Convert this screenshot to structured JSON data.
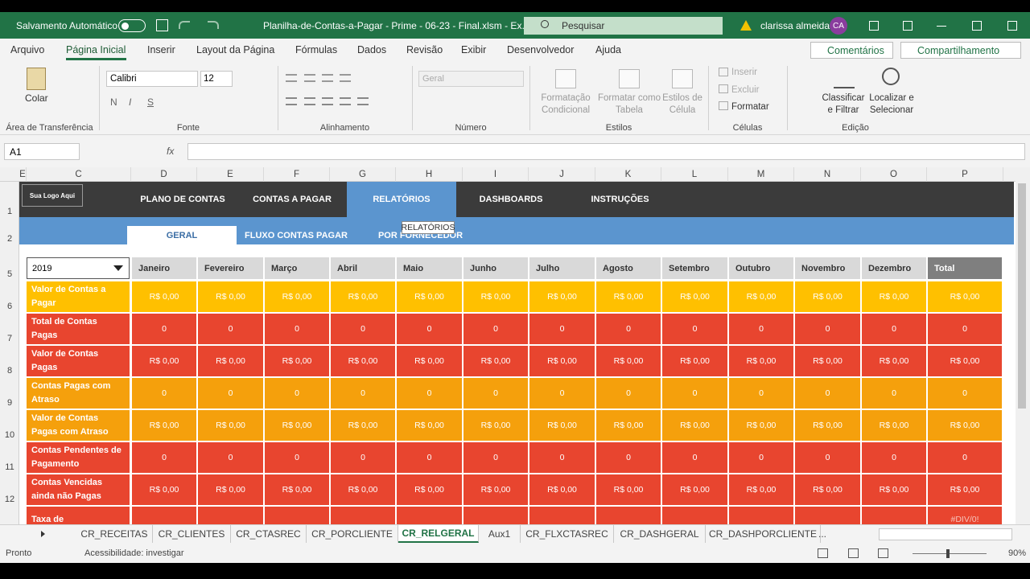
{
  "title_bar": {
    "autosave": "Salvamento Automático",
    "filename": "Planilha-de-Contas-a-Pagar - Prime - 06-23 - Final.xlsm - Ex...",
    "search": "Pesquisar",
    "user": "clarissa almeida",
    "initials": "CA"
  },
  "menu": {
    "tabs": [
      "Arquivo",
      "Página Inicial",
      "Inserir",
      "Layout da Página",
      "Fórmulas",
      "Dados",
      "Revisão",
      "Exibir",
      "Desenvolvedor",
      "Ajuda"
    ],
    "comments": "Comentários",
    "share": "Compartilhamento"
  },
  "ribbon": {
    "paste": "Colar",
    "font": "Calibri",
    "size": "12",
    "bold": "N",
    "italic": "I",
    "underline": "S",
    "number_format": "Geral",
    "conditional": [
      "Formatação",
      "Condicional"
    ],
    "format_table": [
      "Formatar como",
      "Tabela"
    ],
    "cell_styles": [
      "Estilos de",
      "Célula"
    ],
    "insert": "Inserir",
    "delete": "Excluir",
    "format": "Formatar",
    "sort": [
      "Classificar",
      "e Filtrar"
    ],
    "find": [
      "Localizar e",
      "Selecionar"
    ],
    "groups": [
      "Área de Transferência",
      "Fonte",
      "Alinhamento",
      "Número",
      "Estilos",
      "Células",
      "Edição"
    ]
  },
  "formula_bar": {
    "name_box": "A1",
    "fx": "fx"
  },
  "columns": [
    "E",
    "C",
    "D",
    "E",
    "F",
    "G",
    "H",
    "I",
    "J",
    "K",
    "L",
    "M",
    "N",
    "O",
    "P"
  ],
  "row_numbers": [
    "1",
    "2",
    "5",
    "6",
    "7",
    "8",
    "9",
    "10",
    "11",
    "12"
  ],
  "report": {
    "logo": "Sua Logo Aqui",
    "nav": [
      "PLANO DE CONTAS",
      "CONTAS A PAGAR",
      "RELATÓRIOS",
      "DASHBOARDS",
      "INSTRUÇÕES"
    ],
    "subtabs": [
      "GERAL",
      "FLUXO CONTAS PAGAR",
      "POR FORNECEDOR"
    ],
    "tooltip": "RELATÓRIOS",
    "year": "2019",
    "headers": [
      "Janeiro",
      "Fevereiro",
      "Março",
      "Abril",
      "Maio",
      "Junho",
      "Julho",
      "Agosto",
      "Setembro",
      "Outubro",
      "Novembro",
      "Dezembro",
      "Total"
    ],
    "rows": [
      {
        "label": "Valor de Contas a Pagar",
        "color": "#ffc000",
        "values": [
          "R$ 0,00",
          "R$ 0,00",
          "R$ 0,00",
          "R$ 0,00",
          "R$ 0,00",
          "R$ 0,00",
          "R$ 0,00",
          "R$ 0,00",
          "R$ 0,00",
          "R$ 0,00",
          "R$ 0,00",
          "R$ 0,00",
          "R$ 0,00"
        ]
      },
      {
        "label": "Total de Contas Pagas",
        "color": "#e8452f",
        "values": [
          "0",
          "0",
          "0",
          "0",
          "0",
          "0",
          "0",
          "0",
          "0",
          "0",
          "0",
          "0",
          "0"
        ]
      },
      {
        "label": "Valor de Contas Pagas",
        "color": "#e8452f",
        "values": [
          "R$ 0,00",
          "R$ 0,00",
          "R$ 0,00",
          "R$ 0,00",
          "R$ 0,00",
          "R$ 0,00",
          "R$ 0,00",
          "R$ 0,00",
          "R$ 0,00",
          "R$ 0,00",
          "R$ 0,00",
          "R$ 0,00",
          "R$ 0,00"
        ]
      },
      {
        "label": "Contas Pagas com Atraso",
        "color": "#f5a00c",
        "values": [
          "0",
          "0",
          "0",
          "0",
          "0",
          "0",
          "0",
          "0",
          "0",
          "0",
          "0",
          "0",
          "0"
        ]
      },
      {
        "label": "Valor de Contas Pagas com Atraso",
        "color": "#f5a00c",
        "values": [
          "R$ 0,00",
          "R$ 0,00",
          "R$ 0,00",
          "R$ 0,00",
          "R$ 0,00",
          "R$ 0,00",
          "R$ 0,00",
          "R$ 0,00",
          "R$ 0,00",
          "R$ 0,00",
          "R$ 0,00",
          "R$ 0,00",
          "R$ 0,00"
        ]
      },
      {
        "label": "Contas Pendentes de Pagamento",
        "color": "#e8452f",
        "values": [
          "0",
          "0",
          "0",
          "0",
          "0",
          "0",
          "0",
          "0",
          "0",
          "0",
          "0",
          "0",
          "0"
        ]
      },
      {
        "label": "Contas Vencidas ainda não Pagas",
        "color": "#e8452f",
        "values": [
          "R$ 0,00",
          "R$ 0,00",
          "R$ 0,00",
          "R$ 0,00",
          "R$ 0,00",
          "R$ 0,00",
          "R$ 0,00",
          "R$ 0,00",
          "R$ 0,00",
          "R$ 0,00",
          "R$ 0,00",
          "R$ 0,00",
          "R$ 0,00"
        ]
      },
      {
        "label": "Taxa de Inadimplência",
        "color": "#e8452f",
        "values": [
          null,
          null,
          null,
          null,
          null,
          null,
          null,
          null,
          null,
          null,
          null,
          null,
          "#DIV/0!"
        ]
      }
    ]
  },
  "sheets": {
    "tabs": [
      "CR_RECEITAS",
      "CR_CLIENTES",
      "CR_CTASREC",
      "CR_PORCLIENTE",
      "CR_RELGERAL",
      "Aux1",
      "CR_FLXCTASREC",
      "CR_DASHGERAL",
      "CR_DASHPORCLIENTE"
    ],
    "active": 4,
    "more": "..."
  },
  "status": {
    "ready": "Pronto",
    "accessibility": "Acessibilidade: investigar",
    "zoom": "90%"
  }
}
